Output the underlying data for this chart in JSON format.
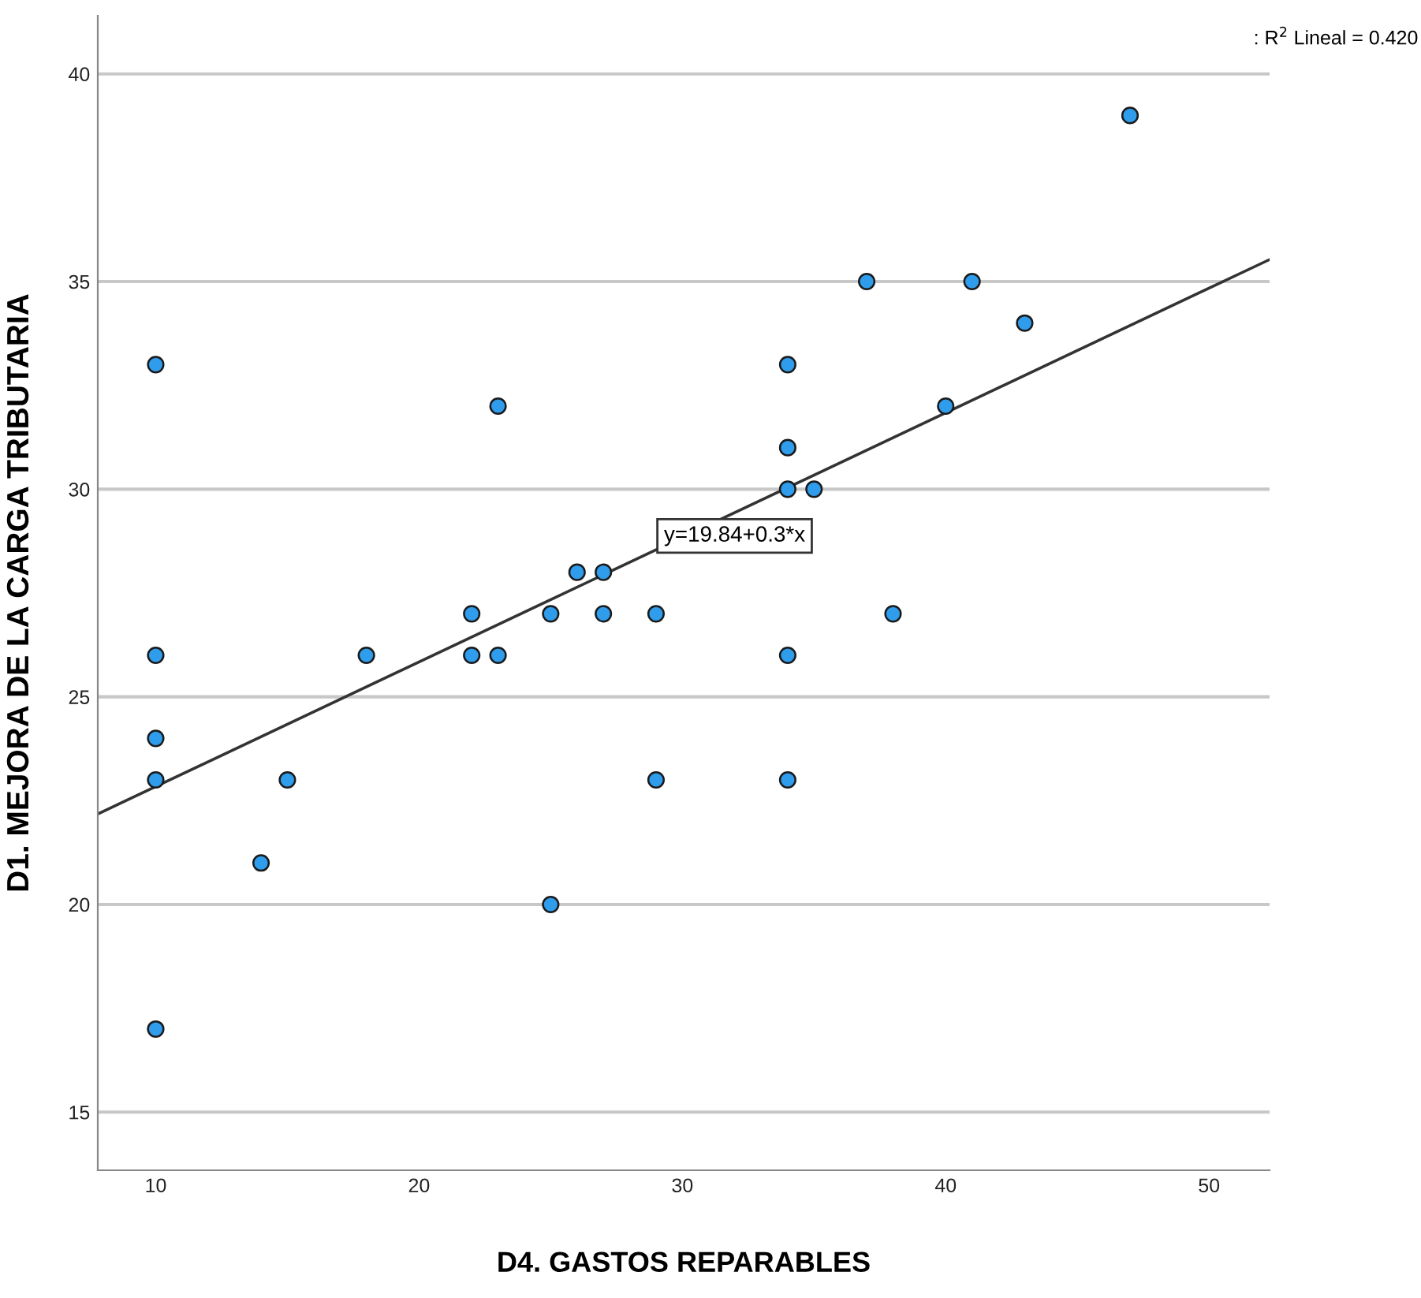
{
  "chart_data": {
    "type": "scatter",
    "xlabel": "D4. GASTOS REPARABLES",
    "ylabel": "D1. MEJORA DE LA CARGA TRIBUTARIA",
    "xlim": [
      7.8,
      52.3
    ],
    "ylim": [
      13.6,
      41.4
    ],
    "xticks": [
      10,
      20,
      30,
      40,
      50
    ],
    "yticks": [
      15,
      20,
      25,
      30,
      35,
      40
    ],
    "grid": "y",
    "series": [
      {
        "marker": "circle",
        "color": "#2f9cec",
        "x": [
          10,
          10,
          10,
          10,
          10,
          14,
          15,
          18,
          22,
          22,
          23,
          23,
          25,
          25,
          26,
          27,
          27,
          29,
          29,
          34,
          34,
          34,
          34,
          34,
          35,
          37,
          38,
          40,
          41,
          43,
          47
        ],
        "values": [
          33,
          26,
          24,
          23,
          17,
          21,
          23,
          26,
          27,
          26,
          32,
          26,
          27,
          20,
          28,
          28,
          27,
          27,
          23,
          33,
          31,
          30,
          26,
          23,
          30,
          35,
          27,
          32,
          35,
          34,
          39
        ]
      },
      {
        "type": "line",
        "marker": "none",
        "color": "#333333",
        "x": [
          7.8,
          52.3
        ],
        "values": [
          22.18,
          35.53
        ]
      }
    ],
    "annotations": [
      {
        "text": "y=19.84+0.3*x",
        "x": 29.3,
        "y": 28.63
      },
      ": R$^{2}$ Lineal = 0.420"
    ]
  }
}
